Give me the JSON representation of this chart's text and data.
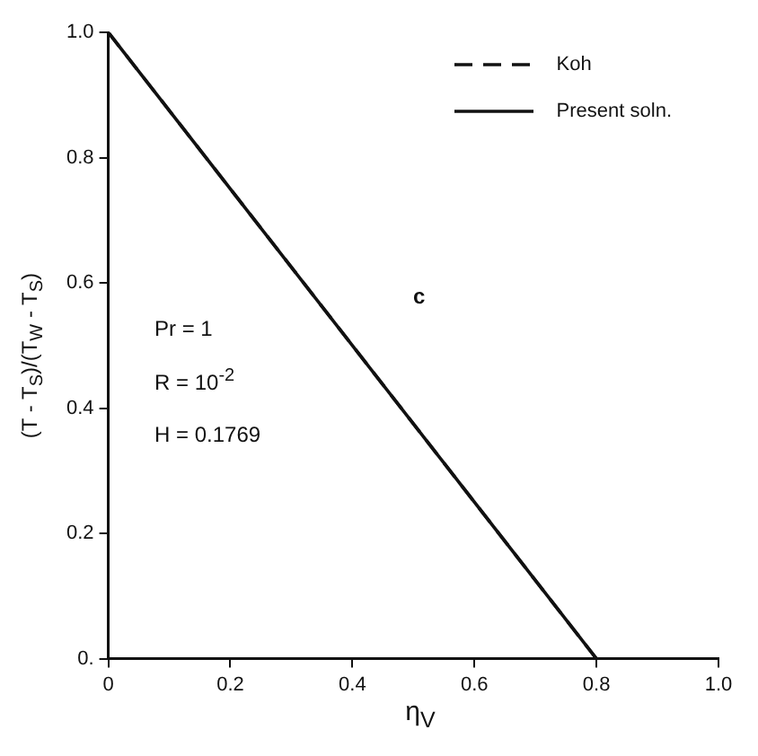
{
  "chart_data": {
    "type": "line",
    "xlabel": "η$_{V}$",
    "ylabel": "(T - T$_{S}$)/(T$_{W}$ - T$_{S}$)",
    "x": [
      0,
      0.8
    ],
    "series": [
      {
        "name": "Koh",
        "color": "#111111",
        "values": [
          1,
          0
        ],
        "line_style": "dashed"
      },
      {
        "name": "Present soln.",
        "color": "#111111",
        "values": [
          1,
          0
        ],
        "line_style": "solid"
      }
    ],
    "xlim": [
      0,
      1
    ],
    "xticks": [
      0,
      0.2,
      0.4,
      0.6,
      0.8,
      {
        "value": 1,
        "label": "1.0"
      }
    ],
    "ylim": [
      0,
      1
    ],
    "yticks": [
      {
        "value": 0,
        "label": "0."
      },
      0.2,
      0.4,
      0.6,
      0.8,
      {
        "value": 1,
        "label": "1.0"
      }
    ],
    "annotations": [
      "Pr = 1",
      "R = 10$^{-2}$",
      "H = 0.1769",
      "c"
    ],
    "legend": "top right",
    "marker": "none",
    "grid": false
  }
}
